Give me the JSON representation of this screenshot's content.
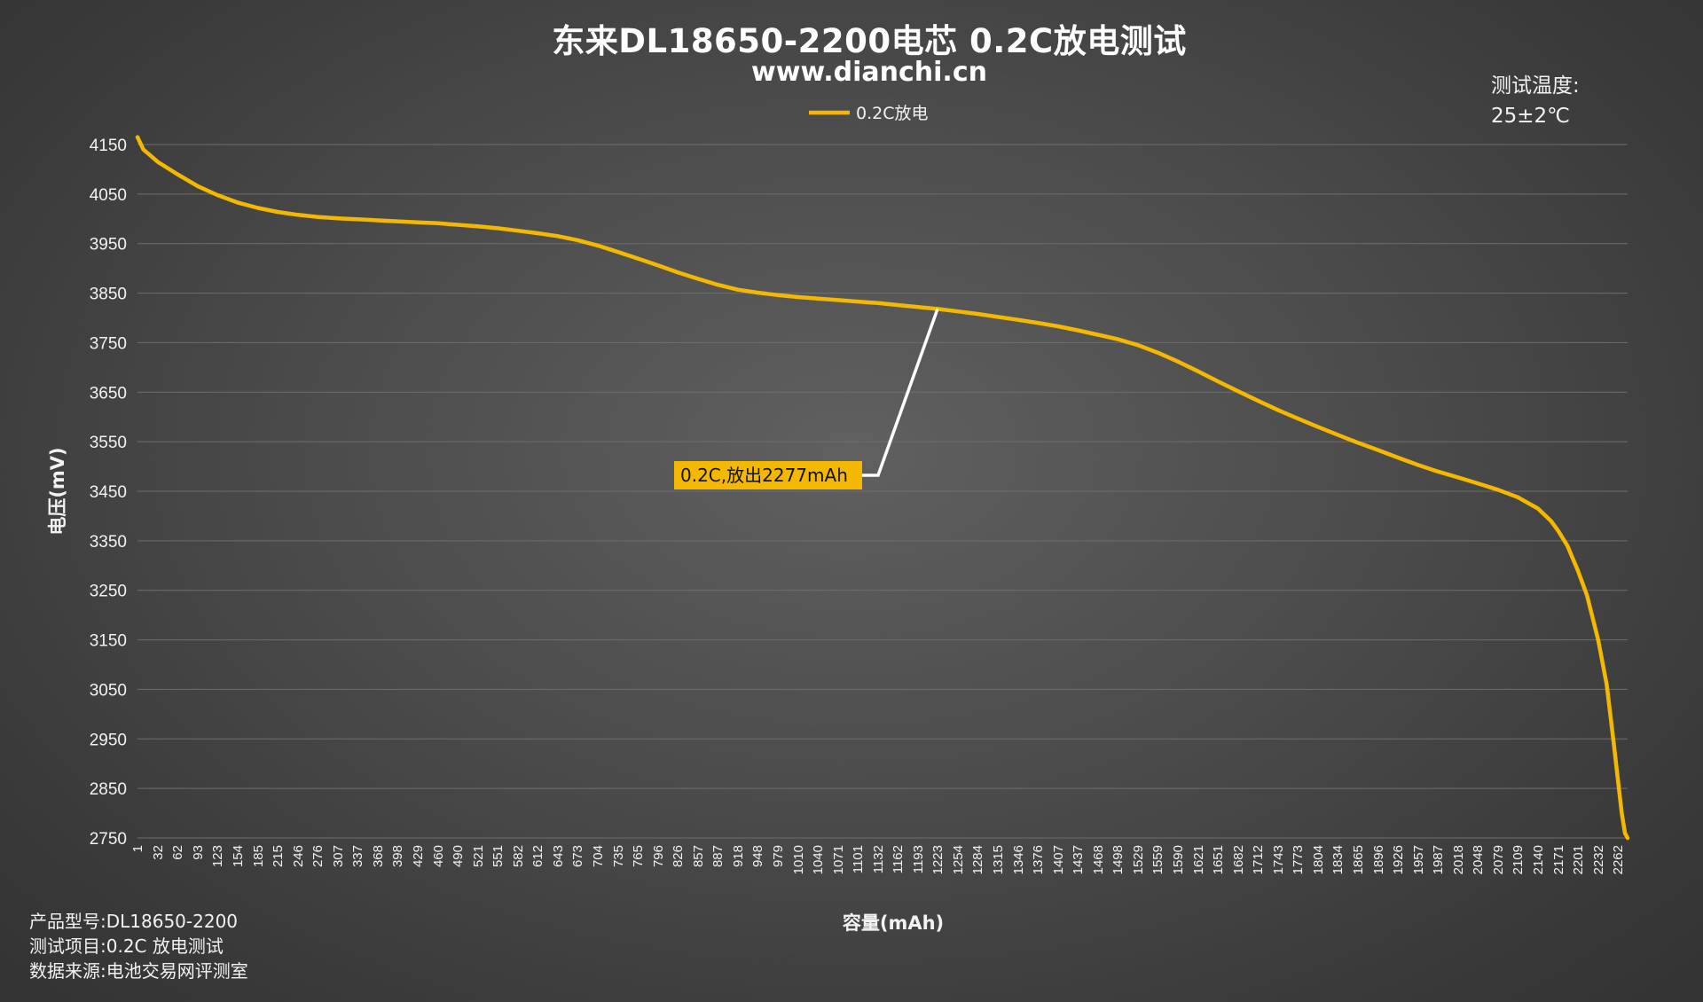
{
  "header": {
    "title": "东来DL18650-2200电芯 0.2C放电测试",
    "subtitle": "www.dianchi.cn"
  },
  "temperature": {
    "label": "测试温度:",
    "value": "25±2℃"
  },
  "footer": {
    "model": "产品型号:DL18650-2200",
    "item": "测试项目:0.2C 放电测试",
    "source": "数据来源:电池交易网评测室"
  },
  "colors": {
    "series": "#f5b800",
    "grid": "#6e6e6e",
    "annotation_bg": "#f5b800",
    "leader_line": "#ffffff"
  },
  "chart_data": {
    "type": "line",
    "title": "东来DL18650-2200电芯 0.2C放电测试",
    "xlabel": "容量(mAh)",
    "ylabel": "电压(mV)",
    "ylim": [
      2750,
      4150
    ],
    "yticks": [
      4150,
      4050,
      3950,
      3850,
      3750,
      3650,
      3550,
      3450,
      3350,
      3250,
      3150,
      3050,
      2950,
      2850,
      2750
    ],
    "xlim": [
      1,
      2277
    ],
    "xticks": [
      1,
      32,
      62,
      93,
      123,
      154,
      185,
      215,
      246,
      276,
      307,
      337,
      368,
      398,
      429,
      460,
      490,
      521,
      551,
      582,
      612,
      643,
      673,
      704,
      735,
      765,
      796,
      826,
      857,
      887,
      918,
      948,
      979,
      1010,
      1040,
      1071,
      1101,
      1132,
      1162,
      1193,
      1223,
      1254,
      1284,
      1315,
      1346,
      1376,
      1407,
      1437,
      1468,
      1498,
      1529,
      1559,
      1590,
      1621,
      1651,
      1682,
      1712,
      1743,
      1773,
      1804,
      1834,
      1865,
      1896,
      1926,
      1957,
      1987,
      2018,
      2048,
      2079,
      2109,
      2140,
      2171,
      2201,
      2232,
      2262
    ],
    "grid": true,
    "legend_position": "top-center",
    "series": [
      {
        "name": "0.2C放电",
        "points": [
          [
            1,
            4165
          ],
          [
            10,
            4140
          ],
          [
            32,
            4115
          ],
          [
            62,
            4090
          ],
          [
            93,
            4066
          ],
          [
            123,
            4048
          ],
          [
            154,
            4033
          ],
          [
            185,
            4022
          ],
          [
            215,
            4014
          ],
          [
            246,
            4008
          ],
          [
            276,
            4004
          ],
          [
            307,
            4001
          ],
          [
            337,
            3999
          ],
          [
            368,
            3997
          ],
          [
            398,
            3995
          ],
          [
            429,
            3993
          ],
          [
            460,
            3991
          ],
          [
            490,
            3988
          ],
          [
            521,
            3985
          ],
          [
            551,
            3981
          ],
          [
            582,
            3976
          ],
          [
            612,
            3971
          ],
          [
            643,
            3965
          ],
          [
            673,
            3957
          ],
          [
            704,
            3946
          ],
          [
            735,
            3933
          ],
          [
            765,
            3920
          ],
          [
            796,
            3906
          ],
          [
            826,
            3892
          ],
          [
            857,
            3879
          ],
          [
            887,
            3867
          ],
          [
            918,
            3857
          ],
          [
            948,
            3851
          ],
          [
            979,
            3846
          ],
          [
            1010,
            3842
          ],
          [
            1040,
            3839
          ],
          [
            1071,
            3836
          ],
          [
            1101,
            3833
          ],
          [
            1132,
            3830
          ],
          [
            1162,
            3826
          ],
          [
            1193,
            3822
          ],
          [
            1223,
            3818
          ],
          [
            1254,
            3813
          ],
          [
            1284,
            3808
          ],
          [
            1315,
            3802
          ],
          [
            1346,
            3796
          ],
          [
            1376,
            3790
          ],
          [
            1407,
            3783
          ],
          [
            1437,
            3775
          ],
          [
            1468,
            3766
          ],
          [
            1498,
            3757
          ],
          [
            1529,
            3745
          ],
          [
            1559,
            3730
          ],
          [
            1590,
            3712
          ],
          [
            1621,
            3692
          ],
          [
            1651,
            3672
          ],
          [
            1682,
            3652
          ],
          [
            1712,
            3633
          ],
          [
            1743,
            3614
          ],
          [
            1773,
            3597
          ],
          [
            1804,
            3580
          ],
          [
            1834,
            3564
          ],
          [
            1865,
            3548
          ],
          [
            1896,
            3533
          ],
          [
            1926,
            3518
          ],
          [
            1957,
            3503
          ],
          [
            1987,
            3490
          ],
          [
            2018,
            3478
          ],
          [
            2048,
            3466
          ],
          [
            2079,
            3453
          ],
          [
            2109,
            3438
          ],
          [
            2140,
            3415
          ],
          [
            2160,
            3390
          ],
          [
            2171,
            3370
          ],
          [
            2185,
            3340
          ],
          [
            2201,
            3290
          ],
          [
            2215,
            3240
          ],
          [
            2232,
            3150
          ],
          [
            2245,
            3060
          ],
          [
            2255,
            2950
          ],
          [
            2262,
            2870
          ],
          [
            2268,
            2800
          ],
          [
            2273,
            2760
          ],
          [
            2277,
            2750
          ]
        ]
      }
    ],
    "annotation": {
      "text": "0.2C,放出2277mAh",
      "x": 1223,
      "y": 3818
    }
  }
}
